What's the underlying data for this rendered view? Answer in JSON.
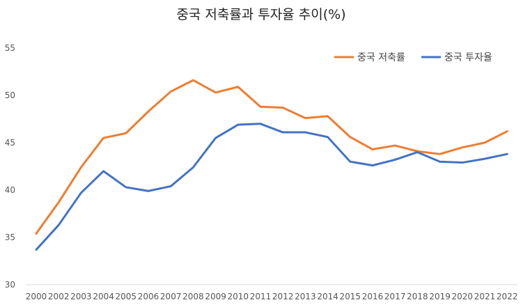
{
  "chart_data": {
    "type": "line",
    "title": "중국 저축률과 투자율 추이(%)",
    "xlabel": "",
    "ylabel": "",
    "ylim": [
      30,
      55
    ],
    "yticks": [
      30,
      35,
      40,
      45,
      50,
      55
    ],
    "grid": false,
    "legend_position": "top-right",
    "categories": [
      "2000",
      "2002",
      "2003",
      "2004",
      "2005",
      "2006",
      "2007",
      "2008",
      "2009",
      "2010",
      "2011",
      "2012",
      "2013",
      "2014",
      "2015",
      "2016",
      "2017",
      "2018",
      "2019",
      "2020",
      "2021",
      "2022"
    ],
    "series": [
      {
        "name": "중국 저축률",
        "color": "#ED7D31",
        "values": [
          35.4,
          38.7,
          42.4,
          45.5,
          46.0,
          48.3,
          50.4,
          51.6,
          50.3,
          50.9,
          48.8,
          48.7,
          47.6,
          47.8,
          45.6,
          44.3,
          44.7,
          44.1,
          43.8,
          44.5,
          45.0,
          46.2
        ]
      },
      {
        "name": "중국 투자율",
        "color": "#4472C4",
        "values": [
          33.7,
          36.3,
          39.7,
          42.0,
          40.3,
          39.9,
          40.4,
          42.4,
          45.5,
          46.9,
          47.0,
          46.1,
          46.1,
          45.6,
          43.0,
          42.6,
          43.2,
          44.0,
          43.0,
          42.9,
          43.3,
          43.8
        ]
      }
    ]
  }
}
